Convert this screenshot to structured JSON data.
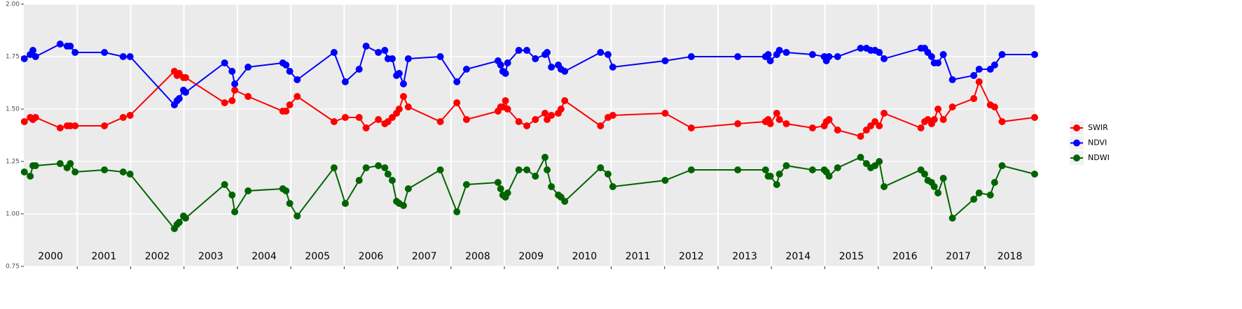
{
  "chart_data": {
    "type": "line",
    "x": [
      2000.01,
      2000.12,
      2000.17,
      2000.22,
      2000.68,
      2000.81,
      2000.87,
      2000.96,
      2001.51,
      2001.86,
      2001.99,
      2002.82,
      2002.87,
      2002.91,
      2002.99,
      2003.03,
      2003.76,
      2003.9,
      2003.95,
      2004.2,
      2004.85,
      2004.91,
      2004.98,
      2005.12,
      2005.81,
      2006.02,
      2006.28,
      2006.41,
      2006.64,
      2006.76,
      2006.82,
      2006.9,
      2006.98,
      2007.03,
      2007.11,
      2007.2,
      2007.8,
      2008.11,
      2008.29,
      2008.88,
      2008.93,
      2008.97,
      2009.02,
      2009.06,
      2009.27,
      2009.42,
      2009.58,
      2009.76,
      2009.8,
      2009.88,
      2010.01,
      2010.06,
      2010.13,
      2010.8,
      2010.94,
      2011.03,
      2012.01,
      2012.5,
      2013.37,
      2013.89,
      2013.94,
      2013.98,
      2014.1,
      2014.15,
      2014.28,
      2014.77,
      2014.99,
      2015.03,
      2015.08,
      2015.24,
      2015.67,
      2015.78,
      2015.86,
      2015.94,
      2016.02,
      2016.11,
      2016.8,
      2016.87,
      2016.93,
      2017.0,
      2017.05,
      2017.12,
      2017.22,
      2017.39,
      2017.79,
      2017.89,
      2018.1,
      2018.18,
      2018.32,
      2018.93
    ],
    "series": [
      {
        "name": "SWIR",
        "color": "#ff0000",
        "values": [
          1.44,
          1.46,
          1.45,
          1.46,
          1.41,
          1.42,
          1.42,
          1.42,
          1.42,
          1.46,
          1.47,
          1.68,
          1.66,
          1.67,
          1.65,
          1.65,
          1.53,
          1.54,
          1.59,
          1.56,
          1.49,
          1.49,
          1.52,
          1.56,
          1.44,
          1.46,
          1.46,
          1.41,
          1.45,
          1.43,
          1.44,
          1.46,
          1.48,
          1.5,
          1.56,
          1.51,
          1.44,
          1.53,
          1.45,
          1.49,
          1.51,
          1.51,
          1.54,
          1.5,
          1.44,
          1.42,
          1.45,
          1.48,
          1.45,
          1.47,
          1.48,
          1.5,
          1.54,
          1.42,
          1.46,
          1.47,
          1.48,
          1.41,
          1.43,
          1.44,
          1.45,
          1.43,
          1.48,
          1.45,
          1.43,
          1.41,
          1.42,
          1.44,
          1.45,
          1.4,
          1.37,
          1.4,
          1.42,
          1.44,
          1.42,
          1.48,
          1.41,
          1.44,
          1.45,
          1.43,
          1.45,
          1.5,
          1.45,
          1.51,
          1.55,
          1.63,
          1.52,
          1.51,
          1.44,
          1.46
        ]
      },
      {
        "name": "NDVI",
        "color": "#0000ff",
        "values": [
          1.74,
          1.76,
          1.78,
          1.75,
          1.81,
          1.8,
          1.8,
          1.77,
          1.77,
          1.75,
          1.75,
          1.52,
          1.54,
          1.55,
          1.59,
          1.58,
          1.72,
          1.68,
          1.62,
          1.7,
          1.72,
          1.71,
          1.68,
          1.64,
          1.77,
          1.63,
          1.69,
          1.8,
          1.77,
          1.78,
          1.74,
          1.74,
          1.66,
          1.67,
          1.62,
          1.74,
          1.75,
          1.63,
          1.69,
          1.73,
          1.71,
          1.68,
          1.67,
          1.72,
          1.78,
          1.78,
          1.74,
          1.76,
          1.77,
          1.7,
          1.71,
          1.69,
          1.68,
          1.77,
          1.76,
          1.7,
          1.73,
          1.75,
          1.75,
          1.75,
          1.76,
          1.73,
          1.76,
          1.78,
          1.77,
          1.76,
          1.75,
          1.73,
          1.75,
          1.75,
          1.79,
          1.79,
          1.78,
          1.78,
          1.77,
          1.74,
          1.79,
          1.79,
          1.77,
          1.75,
          1.72,
          1.72,
          1.76,
          1.64,
          1.66,
          1.69,
          1.69,
          1.71,
          1.76,
          1.76
        ]
      },
      {
        "name": "NDWI",
        "color": "#006400",
        "values": [
          1.2,
          1.18,
          1.23,
          1.23,
          1.24,
          1.22,
          1.24,
          1.2,
          1.21,
          1.2,
          1.19,
          0.93,
          0.95,
          0.96,
          0.99,
          0.98,
          1.14,
          1.09,
          1.01,
          1.11,
          1.12,
          1.11,
          1.05,
          0.99,
          1.22,
          1.05,
          1.16,
          1.22,
          1.23,
          1.22,
          1.19,
          1.16,
          1.06,
          1.05,
          1.04,
          1.12,
          1.21,
          1.01,
          1.14,
          1.15,
          1.12,
          1.09,
          1.08,
          1.1,
          1.21,
          1.21,
          1.18,
          1.27,
          1.21,
          1.13,
          1.09,
          1.08,
          1.06,
          1.22,
          1.19,
          1.13,
          1.16,
          1.21,
          1.21,
          1.21,
          1.18,
          1.18,
          1.14,
          1.19,
          1.23,
          1.21,
          1.21,
          1.2,
          1.18,
          1.22,
          1.27,
          1.24,
          1.22,
          1.23,
          1.25,
          1.13,
          1.21,
          1.19,
          1.16,
          1.15,
          1.13,
          1.1,
          1.17,
          0.98,
          1.07,
          1.1,
          1.09,
          1.15,
          1.23,
          1.19
        ]
      }
    ],
    "xlim": [
      2000,
      2018.93
    ],
    "xticks": [
      2001,
      2002,
      2003,
      2004,
      2005,
      2006,
      2007,
      2008,
      2009,
      2010,
      2011,
      2012,
      2013,
      2014,
      2015,
      2016,
      2017,
      2018
    ],
    "year_labels": [
      "2000",
      "2001",
      "2002",
      "2003",
      "2004",
      "2005",
      "2006",
      "2007",
      "2008",
      "2009",
      "2010",
      "2011",
      "2012",
      "2013",
      "2014",
      "2015",
      "2016",
      "2017",
      "2018"
    ],
    "ylim": [
      0.75,
      2
    ],
    "yticks": [
      0.75,
      {
        "value": 1,
        "label": "1.00"
      },
      1.25,
      {
        "value": 1.5,
        "label": "1.50"
      },
      1.75,
      {
        "value": 2,
        "label": "2.00"
      }
    ],
    "grid": true,
    "legend": "right"
  }
}
